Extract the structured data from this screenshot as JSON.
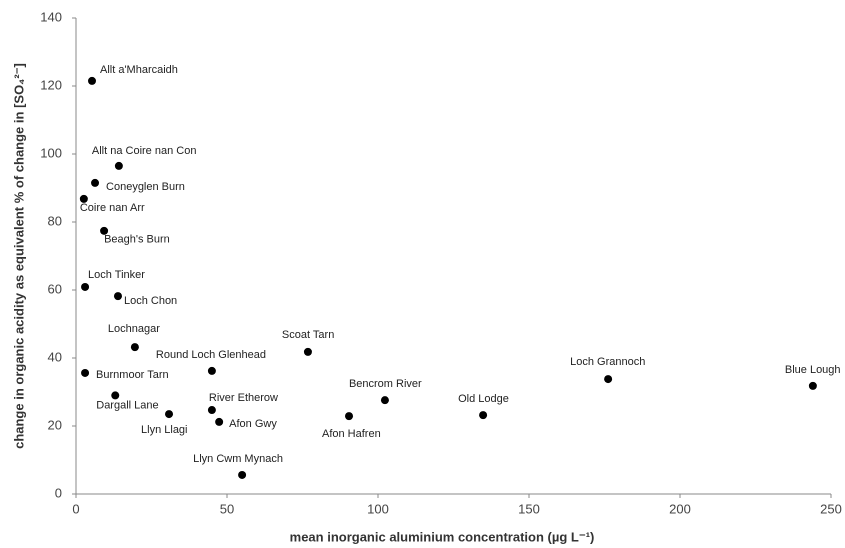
{
  "chart_data": {
    "type": "scatter",
    "x_label": "mean inorganic aluminium concentration (µg L⁻¹)",
    "y_label": "change in organic acidity as equivalent % of change in [SO₄²⁻]",
    "labels": [
      "Allt a'Mharcaidh",
      "Allt na Coire nan Con",
      "Coneyglen Burn",
      "Coire nan Arr",
      "Beagh's Burn",
      "Loch Tinker",
      "Loch Chon",
      "Lochnagar",
      "Scoat Tarn",
      "Round Loch Glenhead",
      "Burnmoor Tarn",
      "Dargall Lane",
      "Llyn Llagi",
      "River Etherow",
      "Afon Gwy",
      "Llyn Cwm Mynach",
      "Afon Hafren",
      "Bencrom River",
      "Old Lodge",
      "Loch Grannoch",
      "Blue Lough"
    ],
    "x": [
      5.3,
      14.2,
      6.3,
      2.6,
      9.3,
      3,
      13.9,
      19.5,
      76.8,
      45,
      3,
      13,
      30.8,
      45,
      47.4,
      55,
      90.4,
      102.3,
      134.8,
      176.2,
      244
    ],
    "values": [
      121.5,
      96.5,
      91.5,
      86.8,
      77.4,
      60.9,
      58.2,
      43.2,
      41.8,
      36.2,
      35.6,
      29,
      23.5,
      24.7,
      21.2,
      5.6,
      22.9,
      27.6,
      23.2,
      33.8,
      31.8
    ],
    "color": "#000000",
    "xlim": [
      0,
      250
    ],
    "xticks": [
      0,
      50,
      100,
      150,
      200,
      250
    ],
    "ylim": [
      0,
      140
    ],
    "yticks": [
      0,
      20,
      40,
      60,
      80,
      100,
      120,
      140
    ],
    "grid": false
  }
}
